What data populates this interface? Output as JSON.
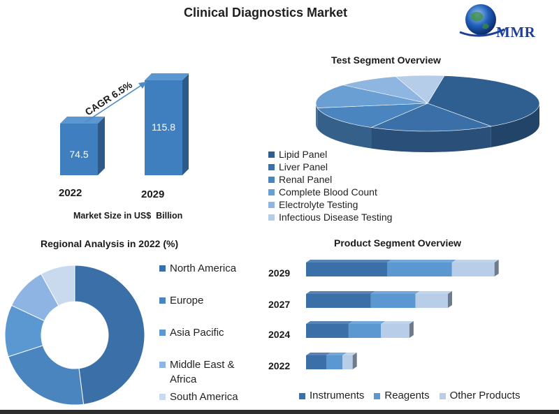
{
  "title": "Clinical Diagnostics Market",
  "logo": {
    "text": "MMR"
  },
  "colors": {
    "dark": "#2f5f90",
    "mid": "#3a78b5",
    "light": "#5b9bd5",
    "lighter": "#8db4e2",
    "pale": "#b7cde8",
    "palest": "#d3e0f0"
  },
  "market_size": {
    "cagr_label": "CAGR 6.5%",
    "axis_label": "Market Size in US$  Billion"
  },
  "test_segment": {
    "title": "Test Segment Overview",
    "legend": [
      "Lipid Panel",
      "Liver Panel",
      "Renal Panel",
      "Complete Blood Count",
      "Electrolyte Testing",
      "Infectious Disease Testing"
    ]
  },
  "regional": {
    "title": "Regional Analysis in 2022 (%)",
    "legend": [
      "North America",
      "Europe",
      "Asia Pacific",
      "Middle East & Africa",
      "South America"
    ]
  },
  "product_segment": {
    "title": "Product Segment Overview",
    "legend": [
      "Instruments",
      "Reagents",
      "Other Products"
    ]
  },
  "chart_data": [
    {
      "type": "bar",
      "title": "",
      "categories": [
        "2022",
        "2029"
      ],
      "values": [
        74.5,
        115.8
      ],
      "data_labels": [
        "74.5",
        "115.8"
      ],
      "xlabel": "Market Size in US$  Billion",
      "annotation": "CAGR 6.5%"
    },
    {
      "type": "pie",
      "title": "Test Segment Overview",
      "labels": [
        "Lipid Panel",
        "Liver Panel",
        "Renal Panel",
        "Complete Blood Count",
        "Electrolyte Testing",
        "Infectious Disease Testing"
      ],
      "values": [
        38,
        18,
        14,
        14,
        9,
        7
      ],
      "legend": "bottom-left"
    },
    {
      "type": "pie",
      "title": "Regional Analysis in 2022 (%)",
      "labels": [
        "North America",
        "Europe",
        "Asia Pacific",
        "Middle East & Africa",
        "South America"
      ],
      "values": [
        48,
        22,
        12,
        10,
        8
      ],
      "legend": "right"
    },
    {
      "type": "bar",
      "orientation": "horizontal",
      "stacked": true,
      "title": "Product Segment Overview",
      "categories": [
        "2029",
        "2027",
        "2024",
        "2022"
      ],
      "series": [
        {
          "name": "Instruments",
          "values": [
            40,
            32,
            21,
            10
          ]
        },
        {
          "name": "Reagents",
          "values": [
            32,
            22,
            16,
            8
          ]
        },
        {
          "name": "Other Products",
          "values": [
            21,
            16,
            14,
            5
          ]
        }
      ],
      "legend": "bottom"
    }
  ]
}
